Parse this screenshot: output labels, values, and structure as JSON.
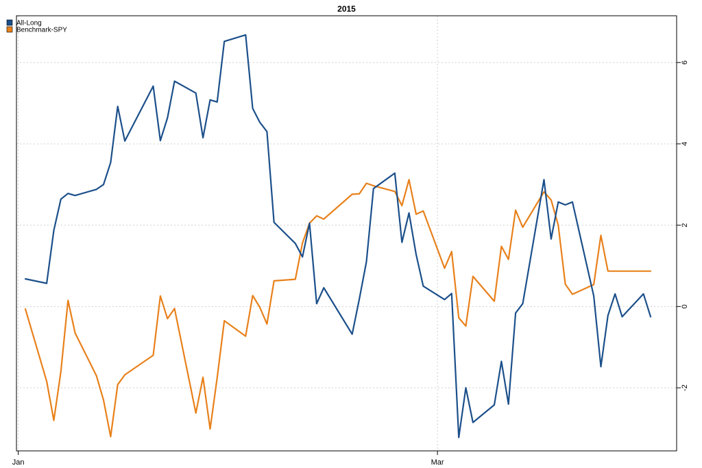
{
  "chart_data": {
    "type": "line",
    "title": "2015",
    "xlabel": "",
    "ylabel": "",
    "ylim": [
      -3.55,
      7.15
    ],
    "xlim": [
      "2015-01-02",
      "2015-03-31"
    ],
    "yticks": [
      -2,
      0,
      2,
      4,
      6
    ],
    "ytick_labels": [
      "-2",
      "0",
      "2",
      "4",
      "6"
    ],
    "xticks": [
      {
        "date": "2015-01-01",
        "label": "Jan"
      },
      {
        "date": "2015-03-01",
        "label": "Mar"
      }
    ],
    "grid": true,
    "legend": "top-left",
    "x": [
      "2015-01-02",
      "2015-01-05",
      "2015-01-06",
      "2015-01-07",
      "2015-01-08",
      "2015-01-09",
      "2015-01-12",
      "2015-01-13",
      "2015-01-14",
      "2015-01-15",
      "2015-01-16",
      "2015-01-20",
      "2015-01-21",
      "2015-01-22",
      "2015-01-23",
      "2015-01-26",
      "2015-01-27",
      "2015-01-28",
      "2015-01-29",
      "2015-01-30",
      "2015-02-02",
      "2015-02-03",
      "2015-02-04",
      "2015-02-05",
      "2015-02-06",
      "2015-02-09",
      "2015-02-10",
      "2015-02-11",
      "2015-02-12",
      "2015-02-13",
      "2015-02-17",
      "2015-02-18",
      "2015-02-19",
      "2015-02-20",
      "2015-02-23",
      "2015-02-24",
      "2015-02-25",
      "2015-02-26",
      "2015-02-27",
      "2015-03-02",
      "2015-03-03",
      "2015-03-04",
      "2015-03-05",
      "2015-03-06",
      "2015-03-09",
      "2015-03-10",
      "2015-03-11",
      "2015-03-12",
      "2015-03-13",
      "2015-03-16",
      "2015-03-17",
      "2015-03-18",
      "2015-03-19",
      "2015-03-20",
      "2015-03-23",
      "2015-03-24",
      "2015-03-25",
      "2015-03-26",
      "2015-03-27",
      "2015-03-30",
      "2015-03-31"
    ],
    "series": [
      {
        "name": "All-Long",
        "color": "#1b4f8a",
        "values": [
          0.68,
          0.57,
          1.87,
          2.64,
          2.78,
          2.73,
          2.88,
          3.0,
          3.54,
          4.92,
          4.07,
          5.42,
          4.08,
          4.64,
          5.54,
          5.25,
          4.15,
          5.08,
          5.03,
          6.52,
          6.68,
          4.87,
          4.53,
          4.3,
          2.07,
          1.55,
          1.22,
          2.05,
          0.07,
          0.46,
          -0.68,
          0.18,
          1.1,
          2.9,
          3.28,
          1.58,
          2.3,
          1.28,
          0.5,
          0.17,
          0.32,
          -3.22,
          -2.0,
          -2.85,
          -2.42,
          -1.35,
          -2.4,
          -0.16,
          0.07,
          3.12,
          1.66,
          2.57,
          2.5,
          2.57,
          0.26,
          -1.48,
          -0.22,
          0.31,
          -0.25,
          0.31,
          -0.25
        ]
      },
      {
        "name": "Benchmark-SPY",
        "color": "#e8801a",
        "values": [
          -0.06,
          -1.84,
          -2.8,
          -1.6,
          0.15,
          -0.65,
          -1.7,
          -2.3,
          -3.2,
          -1.92,
          -1.68,
          -1.2,
          0.26,
          -0.3,
          -0.05,
          -2.62,
          -1.74,
          -3.01,
          -1.75,
          -0.35,
          -0.73,
          0.27,
          -0.02,
          -0.43,
          0.63,
          0.67,
          1.56,
          2.05,
          2.23,
          2.15,
          2.76,
          2.77,
          3.03,
          2.97,
          2.83,
          2.48,
          3.12,
          2.27,
          2.35,
          0.94,
          1.35,
          -0.28,
          -0.48,
          0.74,
          0.13,
          1.48,
          1.16,
          2.37,
          1.95,
          2.82,
          2.62,
          2.0,
          0.55,
          0.3,
          0.54,
          1.75,
          0.87,
          0.87,
          0.87,
          0.87,
          0.87
        ]
      }
    ]
  }
}
